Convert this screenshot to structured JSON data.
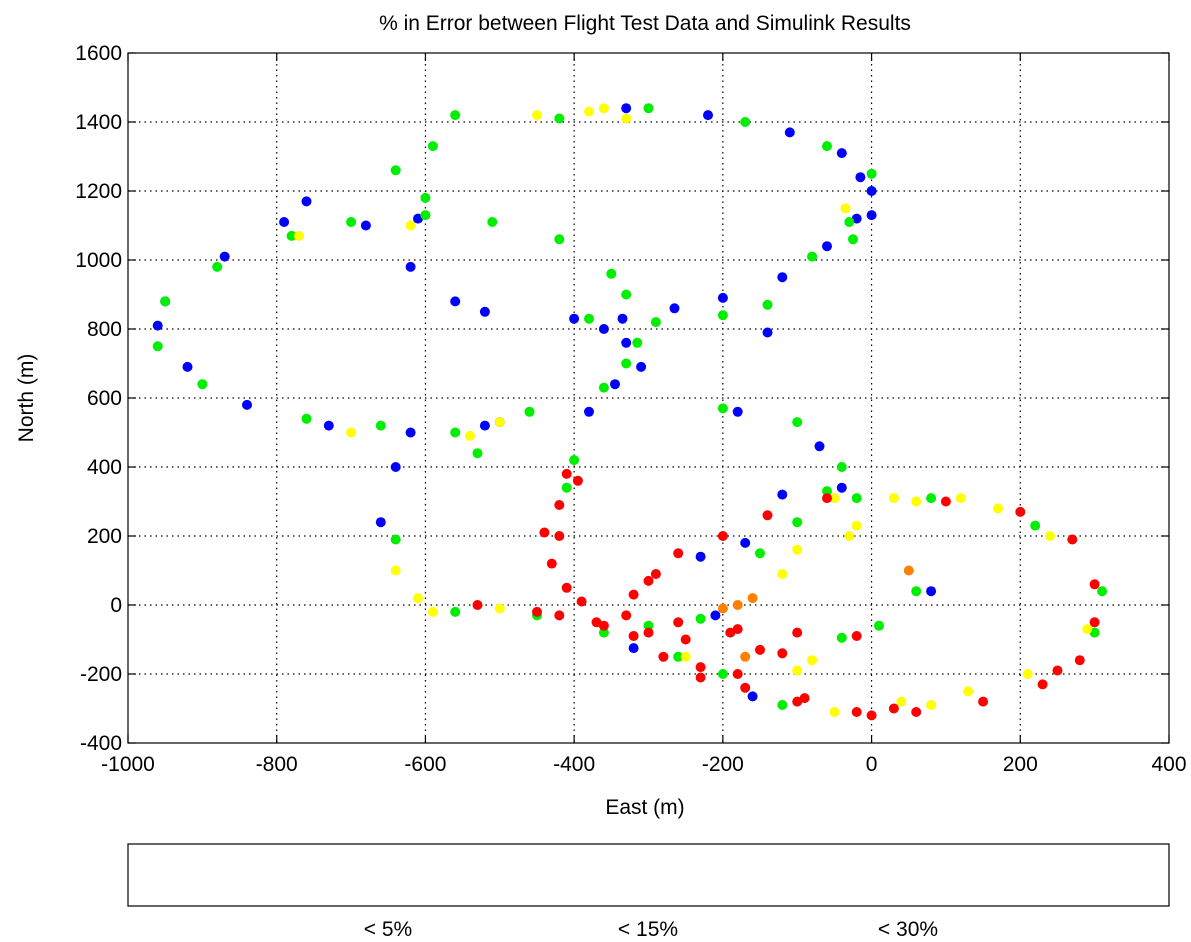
{
  "chart_data": {
    "type": "scatter",
    "title": "% in Error between Flight Test Data and Simulink Results",
    "xlabel": "East (m)",
    "ylabel": "North (m)",
    "xlim": [
      -1000,
      400
    ],
    "ylim": [
      -400,
      1600
    ],
    "xticks": [
      "-1000",
      "-800",
      "-600",
      "-400",
      "-200",
      "0",
      "200",
      "400"
    ],
    "yticks": [
      "-400",
      "-200",
      "0",
      "200",
      "400",
      "600",
      "800",
      "1000",
      "1200",
      "1400",
      "1600"
    ],
    "grid": true,
    "colors": {
      "blue": "#0000ff",
      "green": "#00ee00",
      "yellow": "#ffff00",
      "red": "#ff0000",
      "orange": "#ff8000"
    },
    "colorbar": {
      "segments": [
        "#0000ff",
        "#00ff00",
        "#ffff00",
        "#ff0000"
      ],
      "labels": [
        "< 5%",
        "< 15%",
        "< 30%"
      ]
    },
    "series": [
      {
        "color": "blue",
        "points": [
          [
            -330,
            1440
          ],
          [
            -220,
            1420
          ],
          [
            -110,
            1370
          ],
          [
            -40,
            1310
          ],
          [
            -15,
            1240
          ],
          [
            0,
            1200
          ],
          [
            -20,
            1120
          ],
          [
            -60,
            1040
          ],
          [
            -120,
            950
          ],
          [
            -200,
            890
          ],
          [
            -265,
            860
          ],
          [
            -335,
            830
          ],
          [
            -520,
            850
          ],
          [
            -560,
            880
          ],
          [
            -620,
            980
          ],
          [
            -680,
            1100
          ],
          [
            -790,
            1110
          ],
          [
            -870,
            1010
          ],
          [
            -950,
            880
          ],
          [
            -960,
            810
          ],
          [
            -920,
            690
          ],
          [
            -840,
            580
          ],
          [
            -730,
            520
          ],
          [
            -620,
            500
          ],
          [
            -520,
            520
          ],
          [
            -380,
            560
          ],
          [
            -345,
            640
          ],
          [
            -330,
            760
          ],
          [
            -360,
            800
          ],
          [
            -400,
            830
          ],
          [
            -610,
            1120
          ],
          [
            -760,
            1170
          ],
          [
            -180,
            560
          ],
          [
            -70,
            460
          ],
          [
            -40,
            340
          ],
          [
            -120,
            320
          ],
          [
            -170,
            180
          ],
          [
            -210,
            -30
          ],
          [
            -160,
            -265
          ],
          [
            -320,
            -125
          ],
          [
            -660,
            240
          ],
          [
            -640,
            400
          ],
          [
            -500,
            530
          ],
          [
            -310,
            690
          ],
          [
            -140,
            790
          ],
          [
            0,
            1130
          ],
          [
            80,
            40
          ],
          [
            -230,
            140
          ]
        ]
      },
      {
        "color": "green",
        "points": [
          [
            -560,
            1420
          ],
          [
            -300,
            1440
          ],
          [
            -170,
            1400
          ],
          [
            -60,
            1330
          ],
          [
            0,
            1250
          ],
          [
            -30,
            1110
          ],
          [
            -80,
            1010
          ],
          [
            -140,
            870
          ],
          [
            -200,
            840
          ],
          [
            -290,
            820
          ],
          [
            -315,
            760
          ],
          [
            -330,
            700
          ],
          [
            -360,
            630
          ],
          [
            -460,
            560
          ],
          [
            -560,
            500
          ],
          [
            -660,
            520
          ],
          [
            -760,
            540
          ],
          [
            -900,
            640
          ],
          [
            -960,
            750
          ],
          [
            -950,
            880
          ],
          [
            -880,
            980
          ],
          [
            -780,
            1070
          ],
          [
            -700,
            1110
          ],
          [
            -600,
            1130
          ],
          [
            -510,
            1110
          ],
          [
            -420,
            1060
          ],
          [
            -350,
            960
          ],
          [
            -330,
            900
          ],
          [
            -380,
            830
          ],
          [
            -600,
            1180
          ],
          [
            -640,
            1260
          ],
          [
            -590,
            1330
          ],
          [
            -420,
            1410
          ],
          [
            -25,
            1060
          ],
          [
            -40,
            400
          ],
          [
            -60,
            330
          ],
          [
            -100,
            240
          ],
          [
            -150,
            150
          ],
          [
            -230,
            -40
          ],
          [
            -260,
            -150
          ],
          [
            -360,
            -80
          ],
          [
            -410,
            340
          ],
          [
            -400,
            420
          ],
          [
            -530,
            440
          ],
          [
            -640,
            190
          ],
          [
            -560,
            -20
          ],
          [
            -450,
            -30
          ],
          [
            -300,
            -60
          ],
          [
            -200,
            -200
          ],
          [
            -120,
            -290
          ],
          [
            -20,
            310
          ],
          [
            80,
            310
          ],
          [
            220,
            230
          ],
          [
            310,
            40
          ],
          [
            300,
            -80
          ],
          [
            -40,
            -95
          ],
          [
            10,
            -60
          ],
          [
            60,
            40
          ],
          [
            -100,
            530
          ],
          [
            -200,
            570
          ]
        ]
      },
      {
        "color": "yellow",
        "points": [
          [
            -450,
            1420
          ],
          [
            -380,
            1430
          ],
          [
            -330,
            1410
          ],
          [
            -360,
            1440
          ],
          [
            -620,
            1100
          ],
          [
            -770,
            1070
          ],
          [
            -700,
            500
          ],
          [
            -540,
            490
          ],
          [
            -50,
            310
          ],
          [
            30,
            310
          ],
          [
            60,
            300
          ],
          [
            -20,
            230
          ],
          [
            -100,
            160
          ],
          [
            -120,
            90
          ],
          [
            -160,
            20
          ],
          [
            -250,
            -150
          ],
          [
            -590,
            -20
          ],
          [
            -610,
            20
          ],
          [
            -640,
            100
          ],
          [
            -500,
            -10
          ],
          [
            -50,
            -310
          ],
          [
            80,
            -290
          ],
          [
            120,
            310
          ],
          [
            170,
            280
          ],
          [
            240,
            200
          ],
          [
            290,
            -70
          ],
          [
            210,
            -200
          ],
          [
            130,
            -250
          ],
          [
            -100,
            -190
          ],
          [
            -500,
            530
          ],
          [
            -35,
            1150
          ],
          [
            40,
            -280
          ],
          [
            -80,
            -160
          ],
          [
            -30,
            200
          ]
        ]
      },
      {
        "color": "red",
        "points": [
          [
            -440,
            210
          ],
          [
            -430,
            120
          ],
          [
            -410,
            50
          ],
          [
            -390,
            10
          ],
          [
            -370,
            -50
          ],
          [
            -320,
            -90
          ],
          [
            -280,
            -150
          ],
          [
            -230,
            -180
          ],
          [
            -170,
            -240
          ],
          [
            -100,
            -280
          ],
          [
            -20,
            -310
          ],
          [
            60,
            -310
          ],
          [
            150,
            -280
          ],
          [
            230,
            -230
          ],
          [
            280,
            -160
          ],
          [
            300,
            -50
          ],
          [
            300,
            60
          ],
          [
            270,
            190
          ],
          [
            200,
            270
          ],
          [
            100,
            300
          ],
          [
            -60,
            310
          ],
          [
            -140,
            260
          ],
          [
            -200,
            200
          ],
          [
            -260,
            150
          ],
          [
            -290,
            90
          ],
          [
            -320,
            30
          ],
          [
            -330,
            -30
          ],
          [
            -300,
            -80
          ],
          [
            -250,
            -100
          ],
          [
            -190,
            -80
          ],
          [
            -100,
            -80
          ],
          [
            -20,
            -90
          ],
          [
            -530,
            0
          ],
          [
            -450,
            -20
          ],
          [
            -420,
            -30
          ],
          [
            -360,
            -60
          ],
          [
            -260,
            -50
          ],
          [
            -180,
            -70
          ],
          [
            -150,
            -130
          ],
          [
            -120,
            -140
          ],
          [
            -410,
            380
          ],
          [
            -420,
            290
          ],
          [
            -395,
            360
          ],
          [
            -420,
            200
          ],
          [
            -230,
            -210
          ],
          [
            -180,
            -200
          ],
          [
            250,
            -190
          ],
          [
            30,
            -300
          ],
          [
            0,
            -320
          ],
          [
            -90,
            -270
          ],
          [
            -300,
            70
          ]
        ]
      },
      {
        "color": "orange",
        "points": [
          [
            -160,
            20
          ],
          [
            -180,
            0
          ],
          [
            -200,
            -10
          ],
          [
            -170,
            -150
          ],
          [
            50,
            100
          ]
        ]
      }
    ]
  }
}
